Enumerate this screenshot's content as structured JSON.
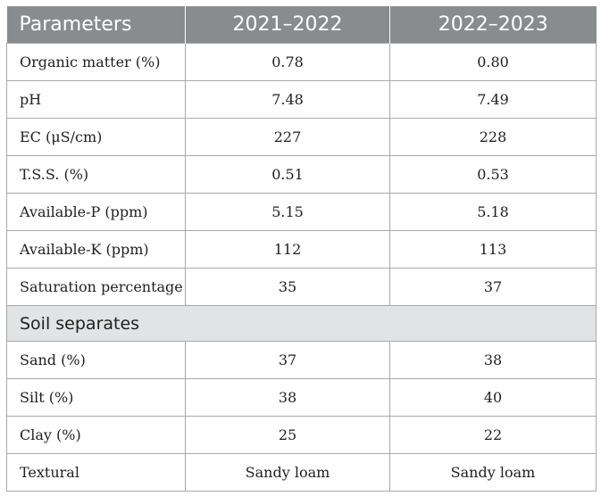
{
  "header": {
    "col1": "Parameters",
    "col2": "2021–2022",
    "col3": "2022–2023"
  },
  "rows": [
    {
      "param": "Organic matter (%)",
      "y1": "0.78",
      "y2": "0.80"
    },
    {
      "param": "pH",
      "y1": "7.48",
      "y2": "7.49"
    },
    {
      "param": "EC (μS/cm)",
      "y1": "227",
      "y2": "228"
    },
    {
      "param": "T.S.S. (%)",
      "y1": "0.51",
      "y2": "0.53"
    },
    {
      "param": "Available-P (ppm)",
      "y1": "5.15",
      "y2": "5.18"
    },
    {
      "param": "Available-K (ppm)",
      "y1": "112",
      "y2": "113"
    },
    {
      "param": "Saturation percentage",
      "y1": "35",
      "y2": "37"
    }
  ],
  "section": "Soil separates",
  "rows2": [
    {
      "param": "Sand (%)",
      "y1": "37",
      "y2": "38"
    },
    {
      "param": "Silt (%)",
      "y1": "38",
      "y2": "40"
    },
    {
      "param": "Clay (%)",
      "y1": "25",
      "y2": "22"
    },
    {
      "param": "Textural",
      "y1": "Sandy loam",
      "y2": "Sandy loam"
    }
  ]
}
